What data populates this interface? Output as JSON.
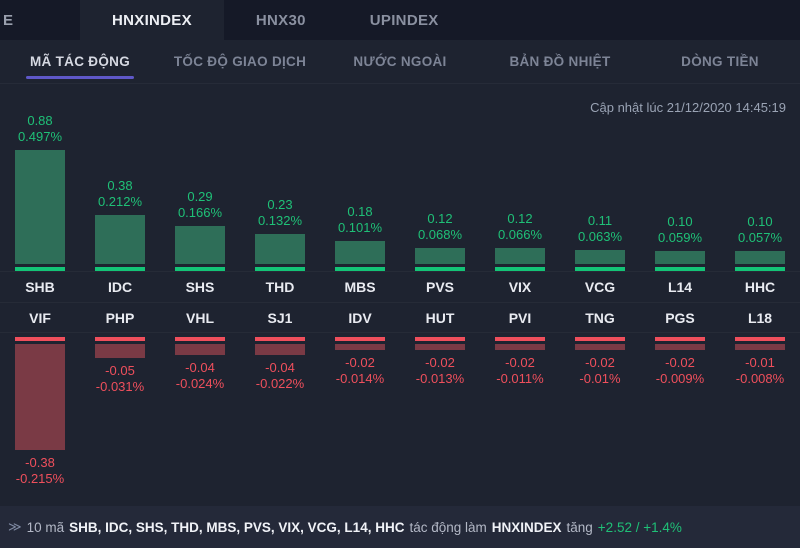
{
  "tabs": {
    "partial_left": "E",
    "items": [
      {
        "label": "HNXINDEX",
        "active": true
      },
      {
        "label": "HNX30",
        "active": false
      },
      {
        "label": "UPINDEX",
        "active": false
      }
    ]
  },
  "subtabs": [
    {
      "label": "MÃ TÁC ĐỘNG",
      "active": true
    },
    {
      "label": "TỐC ĐỘ GIAO DỊCH",
      "active": false
    },
    {
      "label": "NƯỚC NGOÀI",
      "active": false
    },
    {
      "label": "BẢN ĐỒ NHIỆT",
      "active": false
    },
    {
      "label": "DÒNG TIỀN",
      "active": false
    }
  ],
  "updated_at": "Cập nhật lúc 21/12/2020 14:45:19",
  "chart_data": {
    "type": "bar",
    "positive": [
      {
        "ticker": "SHB",
        "value": 0.88,
        "value_label": "0.88",
        "percent_label": "0.497%"
      },
      {
        "ticker": "IDC",
        "value": 0.38,
        "value_label": "0.38",
        "percent_label": "0.212%"
      },
      {
        "ticker": "SHS",
        "value": 0.29,
        "value_label": "0.29",
        "percent_label": "0.166%"
      },
      {
        "ticker": "THD",
        "value": 0.23,
        "value_label": "0.23",
        "percent_label": "0.132%"
      },
      {
        "ticker": "MBS",
        "value": 0.18,
        "value_label": "0.18",
        "percent_label": "0.101%"
      },
      {
        "ticker": "PVS",
        "value": 0.12,
        "value_label": "0.12",
        "percent_label": "0.068%"
      },
      {
        "ticker": "VIX",
        "value": 0.12,
        "value_label": "0.12",
        "percent_label": "0.066%"
      },
      {
        "ticker": "VCG",
        "value": 0.11,
        "value_label": "0.11",
        "percent_label": "0.063%"
      },
      {
        "ticker": "L14",
        "value": 0.1,
        "value_label": "0.10",
        "percent_label": "0.059%"
      },
      {
        "ticker": "HHC",
        "value": 0.1,
        "value_label": "0.10",
        "percent_label": "0.057%"
      }
    ],
    "negative": [
      {
        "ticker": "VIF",
        "value": -0.38,
        "value_label": "-0.38",
        "percent_label": "-0.215%"
      },
      {
        "ticker": "PHP",
        "value": -0.05,
        "value_label": "-0.05",
        "percent_label": "-0.031%"
      },
      {
        "ticker": "VHL",
        "value": -0.04,
        "value_label": "-0.04",
        "percent_label": "-0.024%"
      },
      {
        "ticker": "SJ1",
        "value": -0.04,
        "value_label": "-0.04",
        "percent_label": "-0.022%"
      },
      {
        "ticker": "IDV",
        "value": -0.02,
        "value_label": "-0.02",
        "percent_label": "-0.014%"
      },
      {
        "ticker": "HUT",
        "value": -0.02,
        "value_label": "-0.02",
        "percent_label": "-0.013%"
      },
      {
        "ticker": "PVI",
        "value": -0.02,
        "value_label": "-0.02",
        "percent_label": "-0.011%"
      },
      {
        "ticker": "TNG",
        "value": -0.02,
        "value_label": "-0.02",
        "percent_label": "-0.01%"
      },
      {
        "ticker": "PGS",
        "value": -0.02,
        "value_label": "-0.02",
        "percent_label": "-0.009%"
      },
      {
        "ticker": "L18",
        "value": -0.01,
        "value_label": "-0.01",
        "percent_label": "-0.008%"
      }
    ]
  },
  "footer": {
    "icon": "≫",
    "prefix": "10 mã",
    "tickers": "SHB, IDC, SHS, THD, MBS, PVS, VIX, VCG, L14, HHC",
    "middle": "tác động làm",
    "index": "HNXINDEX",
    "verb": "tăng",
    "change": "+2.52 / +1.4%"
  },
  "colors": {
    "green_accent": "#14c477",
    "green_bar": "#2e6e58",
    "green_text": "#1fc077",
    "red_accent": "#ef4f5c",
    "red_bar": "#7a3a45",
    "red_text": "#ef4f5c",
    "active_subtab_underline": "#5f58c8"
  }
}
